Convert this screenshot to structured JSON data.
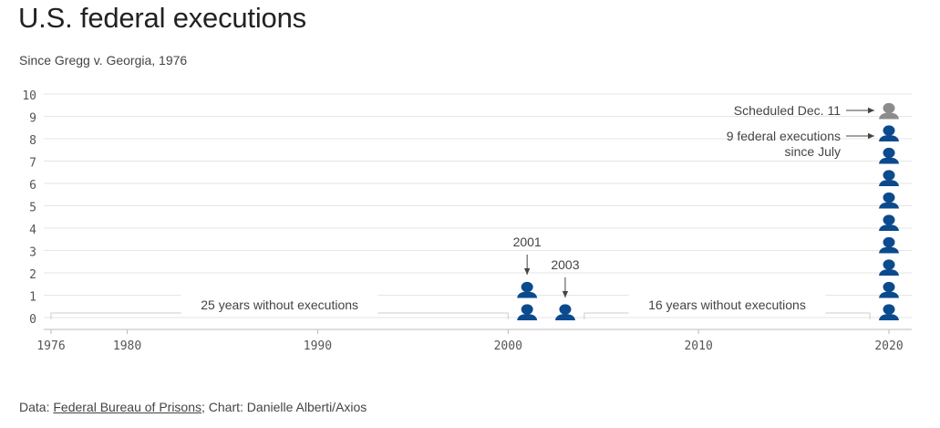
{
  "header": {
    "title": "U.S. federal executions",
    "subtitle": "Since Gregg v. Georgia, 1976"
  },
  "footer": {
    "prefix": "Data: ",
    "source": "Federal Bureau of Prisons",
    "suffix": "; Chart: Danielle Alberti/Axios"
  },
  "colors": {
    "executed": "#0c4a8e",
    "scheduled": "#8c8c8c",
    "grid": "#e6e6e6",
    "axis_text": "#555555",
    "annotation": "#444444",
    "bracket": "#cccccc"
  },
  "chart_data": {
    "type": "scatter",
    "title": "U.S. federal executions",
    "subtitle": "Since Gregg v. Georgia, 1976",
    "marker": "person-icon",
    "xlim": [
      1976,
      2020
    ],
    "ylim": [
      0,
      10
    ],
    "x_ticks": [
      1976,
      1980,
      1990,
      2000,
      2010,
      2020
    ],
    "y_ticks": [
      0,
      1,
      2,
      3,
      4,
      5,
      6,
      7,
      8,
      9,
      10
    ],
    "grid": true,
    "series": [
      {
        "name": "",
        "year": 2001,
        "count": 2,
        "status": "executed"
      },
      {
        "name": "",
        "year": 2003,
        "count": 1,
        "status": "executed"
      },
      {
        "name": "",
        "year": 2020,
        "count": 9,
        "status": "executed"
      },
      {
        "name": "",
        "year": 2020,
        "count": 1,
        "status": "scheduled"
      }
    ],
    "annotations": [
      {
        "id": "label-2001",
        "text": "2001",
        "year": 2001
      },
      {
        "id": "label-2003",
        "text": "2003",
        "year": 2003
      },
      {
        "id": "scheduled",
        "text": "Scheduled Dec. 11"
      },
      {
        "id": "since-july-1",
        "text": "9 federal executions"
      },
      {
        "id": "since-july-2",
        "text": "since July"
      }
    ],
    "gaps": [
      {
        "text": "25 years without executions",
        "from": 1976,
        "to": 2000
      },
      {
        "text": "16 years without executions",
        "from": 2004,
        "to": 2019
      }
    ]
  }
}
